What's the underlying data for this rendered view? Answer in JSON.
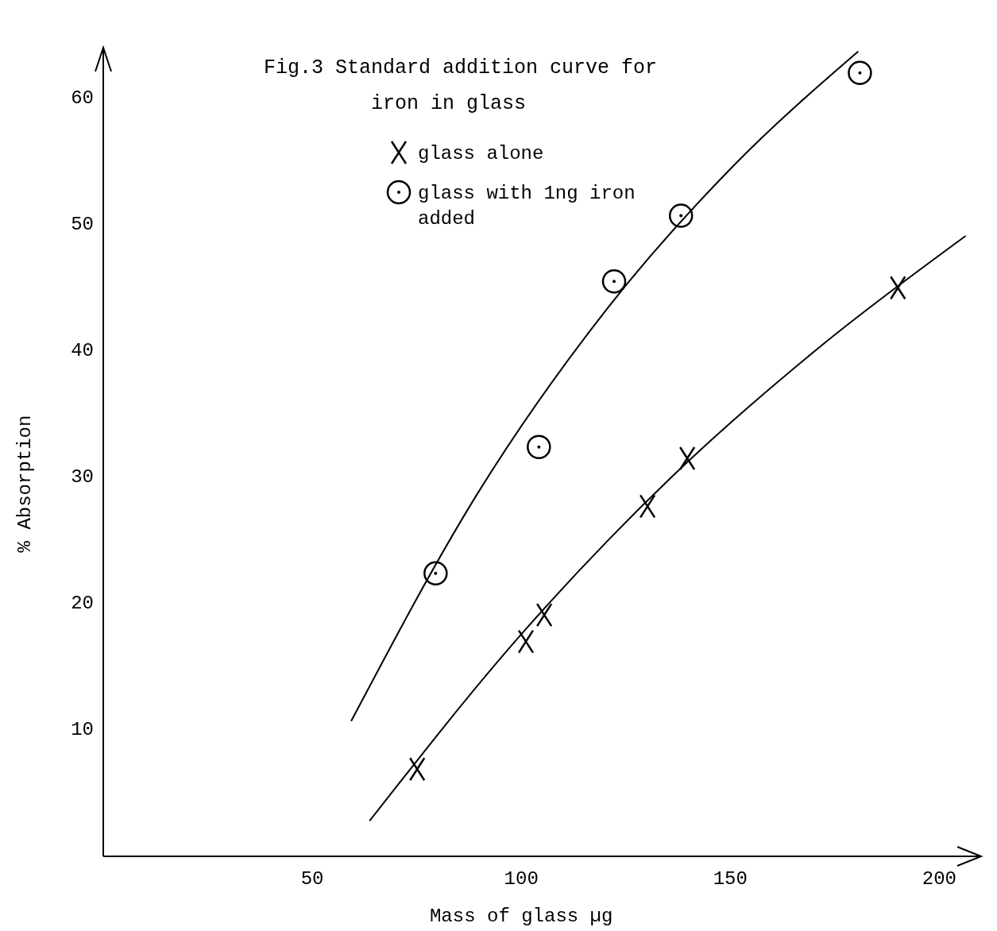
{
  "chart_data": {
    "type": "scatter",
    "title": "Fig.3 Standard addition curve for iron in glass",
    "xlabel": "Mass of glass µg",
    "ylabel": "% Absorption",
    "xlim": [
      0,
      210
    ],
    "ylim": [
      0,
      64
    ],
    "xticks": [
      50,
      100,
      150,
      200
    ],
    "yticks": [
      10,
      20,
      30,
      40,
      50,
      60
    ],
    "grid": false,
    "legend": "top",
    "series": [
      {
        "name": "glass alone",
        "marker": "cross",
        "color": "#000000",
        "x": [
          75.1,
          101.1,
          105.5,
          130.2,
          139.7,
          190.1
        ],
        "values": [
          6.9,
          17.0,
          19.1,
          27.7,
          31.5,
          45.0
        ]
      },
      {
        "name": "glass with 1ng iron added",
        "marker": "circle",
        "color": "#000000",
        "x": [
          79.5,
          104.2,
          122.2,
          138.2,
          181.0
        ],
        "values": [
          22.4,
          32.4,
          45.5,
          50.7,
          62.0
        ]
      },
      {
        "type": "line",
        "color": "#000000",
        "x": [
          63.7,
          99.8,
          135.9,
          172.1,
          206.3
        ],
        "values": [
          2.8,
          17.5,
          30.0,
          40.5,
          49.1
        ]
      },
      {
        "type": "line",
        "color": "#000000",
        "x": [
          59.3,
          89.7,
          120.2,
          150.6,
          180.6
        ],
        "values": [
          10.7,
          28.8,
          43.2,
          54.6,
          63.7
        ]
      }
    ]
  }
}
